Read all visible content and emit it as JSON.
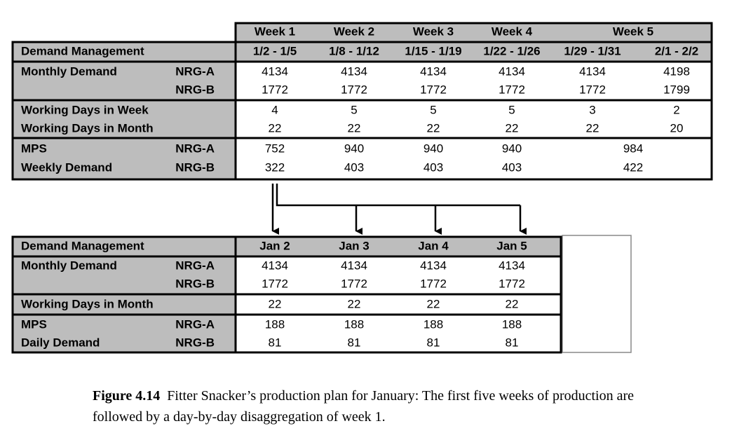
{
  "top_table": {
    "weeks": [
      "Week 1",
      "Week 2",
      "Week 3",
      "Week 4",
      "Week 5"
    ],
    "title": "Demand Management",
    "date_ranges": [
      "1/2 - 1/5",
      "1/8 - 1/12",
      "1/15 - 1/19",
      "1/22 - 1/26",
      "1/29 - 1/31",
      "2/1 - 2/2"
    ],
    "monthly_demand": {
      "label": "Monthly Demand",
      "products": [
        "NRG-A",
        "NRG-B"
      ],
      "values": [
        [
          4134,
          4134,
          4134,
          4134,
          4134,
          4198
        ],
        [
          1772,
          1772,
          1772,
          1772,
          1772,
          1799
        ]
      ]
    },
    "working_days": {
      "labels": [
        "Working Days in Week",
        "Working Days in Month"
      ],
      "values": [
        [
          4,
          5,
          5,
          5,
          3,
          2
        ],
        [
          22,
          22,
          22,
          22,
          22,
          20
        ]
      ]
    },
    "mps": {
      "labels": [
        "MPS",
        "Weekly Demand"
      ],
      "products": [
        "NRG-A",
        "NRG-B"
      ],
      "values": [
        [
          752,
          940,
          940,
          940,
          984
        ],
        [
          322,
          403,
          403,
          403,
          422
        ]
      ]
    }
  },
  "bottom_table": {
    "title": "Demand Management",
    "days": [
      "Jan 2",
      "Jan 3",
      "Jan 4",
      "Jan 5"
    ],
    "monthly_demand": {
      "label": "Monthly Demand",
      "products": [
        "NRG-A",
        "NRG-B"
      ],
      "values": [
        [
          4134,
          4134,
          4134,
          4134
        ],
        [
          1772,
          1772,
          1772,
          1772
        ]
      ]
    },
    "working_days": {
      "label": "Working Days in Month",
      "values": [
        22,
        22,
        22,
        22
      ]
    },
    "mps": {
      "labels": [
        "MPS",
        "Daily Demand"
      ],
      "products": [
        "NRG-A",
        "NRG-B"
      ],
      "values": [
        [
          188,
          188,
          188,
          188
        ],
        [
          81,
          81,
          81,
          81
        ]
      ]
    }
  },
  "caption": {
    "label": "Figure 4.14",
    "text": "Fitter Snacker’s production plan for January: The first five weeks of production are followed by a day-by-day disaggregation of week 1."
  }
}
